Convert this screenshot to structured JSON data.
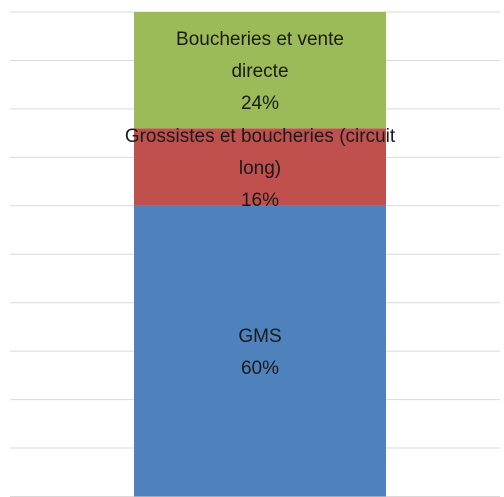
{
  "chart_data": {
    "type": "bar",
    "stacked": true,
    "categories": [
      null
    ],
    "series": [
      {
        "name": "GMS",
        "color": "#4f81bd",
        "values": [
          60
        ],
        "value_labels": [
          "60%"
        ]
      },
      {
        "name": "Grossistes et boucheries (circuit long)",
        "color": "#c0504d",
        "values": [
          16
        ],
        "value_labels": [
          "16%"
        ]
      },
      {
        "name": "Boucheries et vente directe",
        "color": "#9bbb59",
        "values": [
          24
        ],
        "value_labels": [
          "24%"
        ]
      }
    ],
    "ylim": [
      0,
      100
    ],
    "yticks": [
      0,
      10,
      20,
      30,
      40,
      50,
      60,
      70,
      80,
      90,
      100
    ],
    "grid": true
  }
}
